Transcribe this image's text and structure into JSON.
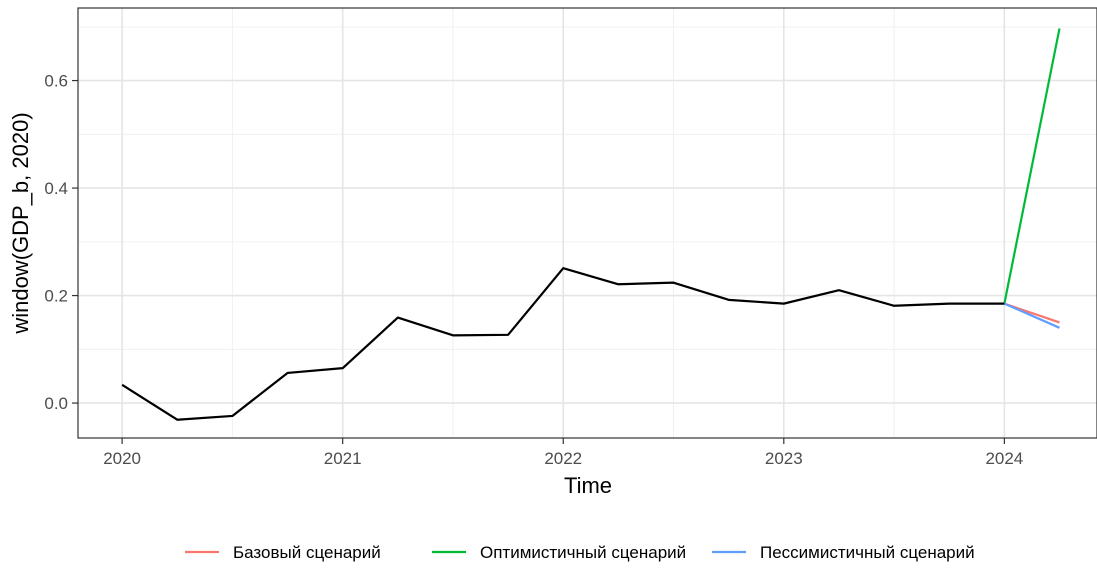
{
  "chart_data": {
    "type": "line",
    "xlabel": "Time",
    "ylabel": "window(GDP_b, 2020)",
    "xlim": [
      2019.8,
      2024.42
    ],
    "ylim": [
      -0.065,
      0.735
    ],
    "x_ticks": [
      2020,
      2021,
      2022,
      2023,
      2024
    ],
    "x_tick_labels": [
      "2020",
      "2021",
      "2022",
      "2023",
      "2024"
    ],
    "y_ticks": [
      0.0,
      0.2,
      0.4,
      0.6
    ],
    "y_tick_labels": [
      "0.0",
      "0.2",
      "0.4",
      "0.6"
    ],
    "grid": true,
    "legend_position": "bottom",
    "historical": {
      "color": "#000000",
      "x": [
        2020.0,
        2020.25,
        2020.5,
        2020.75,
        2021.0,
        2021.25,
        2021.5,
        2021.75,
        2022.0,
        2022.25,
        2022.5,
        2022.75,
        2023.0,
        2023.25,
        2023.5,
        2023.75,
        2024.0
      ],
      "y": [
        0.034,
        -0.031,
        -0.024,
        0.056,
        0.065,
        0.159,
        0.126,
        0.127,
        0.251,
        0.221,
        0.224,
        0.192,
        0.185,
        0.21,
        0.181,
        0.185,
        0.185
      ]
    },
    "series": [
      {
        "name": "Базовый сценарий",
        "color": "#F8766D",
        "x": [
          2024.0,
          2024.25
        ],
        "y": [
          0.185,
          0.15
        ]
      },
      {
        "name": "Оптимистичный сценарий",
        "color": "#00BA38",
        "x": [
          2024.0,
          2024.25
        ],
        "y": [
          0.185,
          0.697
        ]
      },
      {
        "name": "Пессимистичный сценарий",
        "color": "#619CFF",
        "x": [
          2024.0,
          2024.25
        ],
        "y": [
          0.185,
          0.14
        ]
      }
    ]
  }
}
